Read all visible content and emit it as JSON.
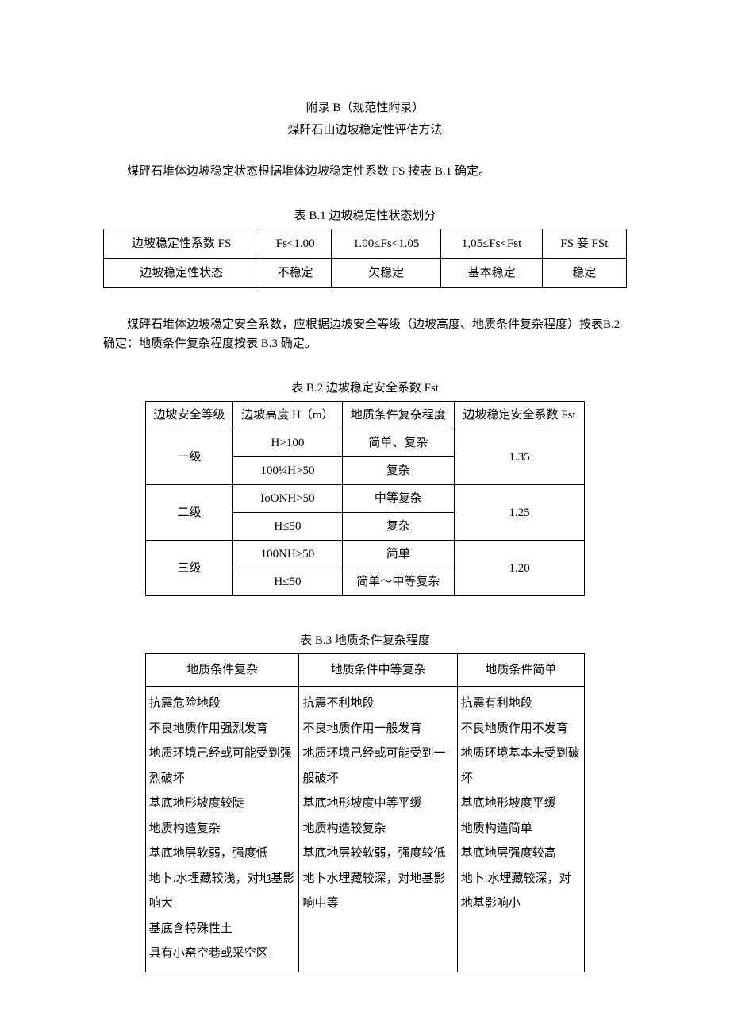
{
  "header": {
    "line1": "附录 B（规范性附录）",
    "line2": "煤阡石山边坡稳定性评估方法"
  },
  "para1": "煤砰石堆体边坡稳定状态根据堆体边坡稳定性系数 FS 按表 B.1 确定。",
  "table1": {
    "caption": "表 B.1 边坡稳定性状态划分",
    "row1": [
      "边坡稳定性系数 FS",
      "Fs<1.00",
      "1.00≤Fs<1.05",
      "1,05≤Fs<Fst",
      "FS 妾 FSt"
    ],
    "row2": [
      "边坡稳定性状态",
      "不稳定",
      "欠稳定",
      "基本稳定",
      "稳定"
    ]
  },
  "para2": "煤砰石堆体边坡稳定安全系数，应根据边坡安全等级（边坡高度、地质条件复杂程度）按表B.2 确定：地质条件复杂程度按表 B.3 确定。",
  "table2": {
    "caption": "表 B.2 边坡稳定安全系数 Fst",
    "headers": [
      "边坡安全等级",
      "边坡高度 H（m）",
      "地质条件复杂程度",
      "边坡稳定安全系数 Fst"
    ],
    "rows": [
      {
        "level": "一级",
        "h1": "H>100",
        "c1": "简单、复杂",
        "h2": "100¼H>50",
        "c2": "复杂",
        "fst": "1.35"
      },
      {
        "level": "二级",
        "h1": "IoONH>50",
        "c1": "中等复杂",
        "h2": "H≤50",
        "c2": "复杂",
        "fst": "1.25"
      },
      {
        "level": "三级",
        "h1": "100NH>50",
        "c1": "简单",
        "h2": "H≤50",
        "c2": "简单～中等复杂",
        "fst": "1.20"
      }
    ]
  },
  "table3": {
    "caption": "表 B.3 地质条件复杂程度",
    "headers": [
      "地质条件复杂",
      "地质条件中等复杂",
      "地质条件简单"
    ],
    "col1": "抗震危险地段\n不良地质作用强烈发育\n地质环境己经或可能受到强烈破坏\n基底地形坡度较陡\n地质构造复杂\n基底地层软弱，强度低\n地卜.水埋藏较浅，对地基影响大\n基底含特殊性土\n具有小窑空巷或采空区",
    "col2": "抗震不利地段\n不良地质作用一般发育\n地质环境己经或可能受到一般破坏\n基底地形坡度中等平缓\n地质构造较复杂\n基底地层较软弱，强度较低\n地卜水埋藏较深，对地基影响中等",
    "col3": "抗震有利地段\n不良地质作用不发育\n地质环境基本未受到破坏\n基底地形坡度平缓\n地质构造简单\n基底地层强度较高\n地卜.水埋藏较深，对地基影响小"
  }
}
